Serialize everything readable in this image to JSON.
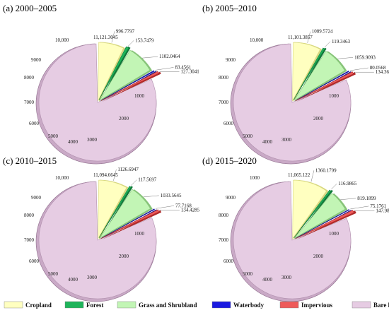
{
  "chart_data": [
    {
      "type": "pie",
      "title": "(a) 2000–2005",
      "categories": [
        "Cropland",
        "Forest",
        "Grass and Shrubland",
        "Waterbody",
        "Impervious",
        "Bare land"
      ],
      "value_labels": [
        "996.7797",
        "153.7479",
        "1102.0464",
        "83.4561",
        "127.3041",
        "11,121.3045"
      ],
      "values": [
        996.7797,
        153.7479,
        1102.0464,
        83.4561,
        127.3041,
        11121.3045
      ],
      "radial_ticks": [
        "10,000",
        "9000",
        "8000",
        "7000",
        "6000",
        "5000",
        "4000",
        "3000",
        "2000",
        "1000"
      ]
    },
    {
      "type": "pie",
      "title": "(b) 2005–2010",
      "categories": [
        "Cropland",
        "Forest",
        "Grass and Shrubland",
        "Waterbody",
        "Impervious",
        "Bare land"
      ],
      "value_labels": [
        "1089.5724",
        "119.3463",
        "1059.9093",
        "80.0568",
        "134.3682",
        "11,101.3857"
      ],
      "values": [
        1089.5724,
        119.3463,
        1059.9093,
        80.0568,
        134.3682,
        11101.3857
      ],
      "radial_ticks": [
        "10,000",
        "9000",
        "8000",
        "7000",
        "6000",
        "5000",
        "4000",
        "3000",
        "2000",
        "1000"
      ]
    },
    {
      "type": "pie",
      "title": "(c) 2010–2015",
      "categories": [
        "Cropland",
        "Forest",
        "Grass and Shrubland",
        "Waterbody",
        "Impervious",
        "Bare land"
      ],
      "value_labels": [
        "1126.6947",
        "117.5697",
        "1033.5645",
        "77.7168",
        "134.4285",
        "11,094.6645"
      ],
      "values": [
        1126.6947,
        117.5697,
        1033.5645,
        77.7168,
        134.4285,
        11094.6645
      ],
      "radial_ticks": [
        "10,000",
        "9000",
        "8000",
        "7000",
        "6000",
        "5000",
        "4000",
        "3000",
        "2000",
        "1000"
      ]
    },
    {
      "type": "pie",
      "title": "(d) 2015–2020",
      "categories": [
        "Cropland",
        "Forest",
        "Grass and Shrubland",
        "Waterbody",
        "Impervious",
        "Bare land"
      ],
      "value_labels": [
        "1360.1799",
        "116.9865",
        "819.1899",
        "75.1761",
        "147.9843",
        "11,065.122"
      ],
      "values": [
        1360.1799,
        116.9865,
        819.1899,
        75.1761,
        147.9843,
        11065.122
      ],
      "radial_ticks": [
        "1000",
        "9000",
        "8000",
        "7000",
        "6000",
        "5000",
        "4000",
        "3000",
        "2000",
        "1000"
      ]
    }
  ],
  "legend": {
    "items": [
      {
        "label": "Cropland",
        "color": "#ffffc0"
      },
      {
        "label": "Forest",
        "color": "#1eb45a"
      },
      {
        "label": "Grass and Shrubland",
        "color": "#c2f5b5"
      },
      {
        "label": "Waterbody",
        "color": "#1a1ae0"
      },
      {
        "label": "Impervious",
        "color": "#ee5a5a"
      },
      {
        "label": "Bare land",
        "color": "#e6cce3"
      }
    ]
  }
}
